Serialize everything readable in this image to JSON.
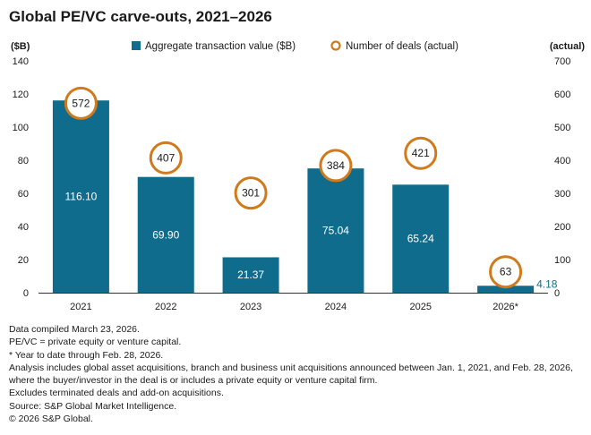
{
  "chart_data": {
    "type": "bar",
    "title": "Global PE/VC carve-outs, 2021–2026",
    "categories": [
      "2021",
      "2022",
      "2023",
      "2024",
      "2025",
      "2026*"
    ],
    "series": [
      {
        "name": "Aggregate transaction value ($B)",
        "axis": "left",
        "kind": "bar",
        "values": [
          116.1,
          69.9,
          21.37,
          75.04,
          65.24,
          4.18
        ],
        "labels": [
          "116.10",
          "69.90",
          "21.37",
          "75.04",
          "65.24",
          "4.18"
        ]
      },
      {
        "name": "Number of deals (actual)",
        "axis": "right",
        "kind": "marker",
        "values": [
          572,
          407,
          301,
          384,
          421,
          63
        ],
        "labels": [
          "572",
          "407",
          "301",
          "384",
          "421",
          "63"
        ]
      }
    ],
    "ylabel_left": "($B)",
    "ylabel_right": "(actual)",
    "ylim_left": [
      0,
      140
    ],
    "ylim_right": [
      0,
      700
    ],
    "yticks_left": [
      "0",
      "20",
      "40",
      "60",
      "80",
      "100",
      "120",
      "140"
    ],
    "yticks_right": [
      "0",
      "100",
      "200",
      "300",
      "400",
      "500",
      "600",
      "700"
    ],
    "legend_position": "top-center",
    "grid": false,
    "colors": {
      "bar": "#0f6c8c",
      "marker": "#d07a1c",
      "outside_label": "#0f6c8c"
    }
  },
  "footnotes": [
    "Data compiled March 23, 2026.",
    "PE/VC = private equity or venture capital.",
    "* Year to date through Feb. 28, 2026.",
    "Analysis includes global asset acquisitions, branch and business unit acquisitions announced between Jan. 1, 2021, and Feb. 28, 2026, where the buyer/investor in the deal is or includes a private equity or venture capital firm.",
    "Excludes terminated deals and add-on acquisitions.",
    "Source: S&P Global Market Intelligence.",
    "© 2026 S&P Global."
  ]
}
